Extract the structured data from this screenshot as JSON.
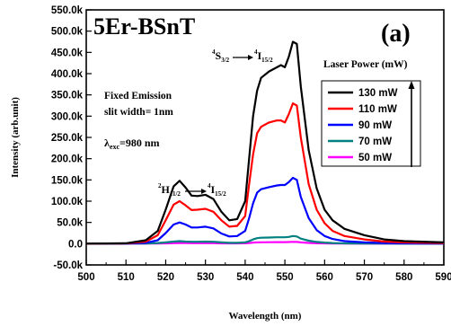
{
  "chart_data": {
    "type": "line",
    "title": "5Er-BSnT",
    "panel_label": "(a)",
    "xlabel": "Wavelength (nm)",
    "ylabel": "Intensity (arb.unit)",
    "xlim": [
      500,
      590
    ],
    "ylim": [
      -50000,
      550000
    ],
    "x_ticks": [
      500,
      510,
      520,
      530,
      540,
      550,
      560,
      570,
      580,
      590
    ],
    "x_tick_labels": [
      "500",
      "510",
      "520",
      "530",
      "540",
      "550",
      "560",
      "570",
      "580",
      "590"
    ],
    "y_ticks": [
      -50000,
      0,
      50000,
      100000,
      150000,
      200000,
      250000,
      300000,
      350000,
      400000,
      450000,
      500000,
      550000
    ],
    "y_tick_labels": [
      "-50.0k",
      "0.0",
      "50.0k",
      "100.0k",
      "150.0k",
      "200.0k",
      "250.0k",
      "300.0k",
      "350.0k",
      "400.0k",
      "450.0k",
      "500.0k",
      "550.0k"
    ],
    "legend": {
      "title": "Laser Power (mW)",
      "placement": "right"
    },
    "annotations": {
      "fixed_emission": [
        "Fixed Emission",
        "slit width= 1nm"
      ],
      "lambda_exc": {
        "symbol": "λ",
        "sub": "exc",
        "rest": "=980 nm"
      },
      "transition_s": {
        "upper": "4",
        "base": "S",
        "lower": "3/2",
        "upper2": "4",
        "base2": "I",
        "lower2": "15/2"
      },
      "transition_h": {
        "upper": "2",
        "base": "H",
        "lower": "11/2",
        "upper2": "4",
        "base2": "I",
        "lower2": "15/2"
      }
    },
    "x": [
      500,
      510,
      515,
      518,
      520,
      522,
      523.5,
      525,
      526.5,
      528,
      530,
      532,
      534,
      536,
      538,
      540,
      541,
      542,
      543,
      544,
      546,
      548,
      549,
      550,
      551,
      552,
      553,
      554,
      556,
      558,
      560,
      562,
      565,
      570,
      575,
      580,
      590
    ],
    "series": [
      {
        "name": "130 mW",
        "color": "#000000",
        "values": [
          0,
          1000,
          8000,
          30000,
          80000,
          135000,
          148000,
          132000,
          113000,
          112000,
          115000,
          105000,
          75000,
          55000,
          58000,
          100000,
          200000,
          300000,
          360000,
          390000,
          405000,
          415000,
          420000,
          415000,
          440000,
          475000,
          470000,
          370000,
          220000,
          130000,
          80000,
          55000,
          35000,
          20000,
          10000,
          6000,
          3000
        ]
      },
      {
        "name": "110 mW",
        "color": "#ff0000",
        "values": [
          0,
          800,
          5000,
          20000,
          55000,
          92000,
          100000,
          90000,
          79000,
          80000,
          82000,
          75000,
          55000,
          40000,
          42000,
          65000,
          140000,
          210000,
          260000,
          275000,
          285000,
          290000,
          290000,
          285000,
          305000,
          330000,
          325000,
          250000,
          140000,
          80000,
          48000,
          30000,
          18000,
          10000,
          5000,
          3000,
          1500
        ]
      },
      {
        "name": "90 mW",
        "color": "#0000ff",
        "values": [
          0,
          500,
          2000,
          8000,
          25000,
          45000,
          50000,
          45000,
          38000,
          38000,
          40000,
          36000,
          24000,
          17000,
          18000,
          30000,
          60000,
          95000,
          120000,
          128000,
          133000,
          137000,
          138000,
          138000,
          145000,
          155000,
          150000,
          110000,
          60000,
          32000,
          18000,
          11000,
          6000,
          3000,
          1500,
          1000,
          500
        ]
      },
      {
        "name": "70 mW",
        "color": "#008080",
        "values": [
          0,
          200,
          500,
          1500,
          3000,
          5000,
          6000,
          5000,
          4500,
          4500,
          5000,
          4500,
          3000,
          2000,
          2000,
          3000,
          6000,
          10000,
          13000,
          14000,
          14500,
          15000,
          15000,
          15000,
          16000,
          18000,
          17000,
          12000,
          7000,
          4000,
          2500,
          1500,
          800,
          400,
          200,
          100,
          50
        ]
      },
      {
        "name": "50 mW",
        "color": "#ff00ff",
        "values": [
          0,
          100,
          200,
          500,
          800,
          1200,
          1500,
          1300,
          1200,
          1200,
          1300,
          1100,
          800,
          600,
          600,
          900,
          1500,
          2500,
          3000,
          3300,
          3500,
          3600,
          3600,
          3600,
          3800,
          4200,
          4000,
          3000,
          1800,
          1000,
          600,
          400,
          200,
          100,
          50,
          30,
          20
        ]
      }
    ]
  }
}
